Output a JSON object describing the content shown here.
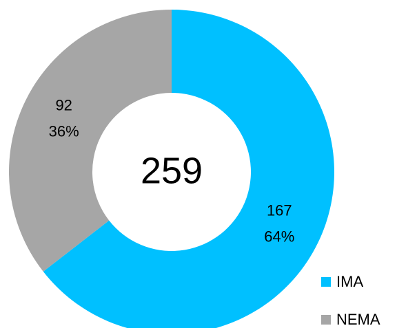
{
  "chart_data": {
    "type": "donut",
    "categories": [
      "IMA",
      "NEMA"
    ],
    "values": [
      167,
      92
    ],
    "percent_labels": [
      "64%",
      "36%"
    ],
    "colors": [
      "#00c0ff",
      "#a6a6a6"
    ],
    "total": 259
  }
}
